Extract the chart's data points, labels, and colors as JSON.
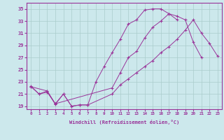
{
  "xlabel": "Windchill (Refroidissement éolien,°C)",
  "bg_color": "#cce8ec",
  "grid_color": "#aacccc",
  "line_color": "#993399",
  "xlim": [
    -0.5,
    23.5
  ],
  "ylim": [
    18.5,
    36.0
  ],
  "xticks": [
    0,
    1,
    2,
    3,
    4,
    5,
    6,
    7,
    8,
    9,
    10,
    11,
    12,
    13,
    14,
    15,
    16,
    17,
    18,
    19,
    20,
    21,
    22,
    23
  ],
  "yticks": [
    19,
    21,
    23,
    25,
    27,
    29,
    31,
    33,
    35
  ],
  "curves": [
    {
      "x": [
        0,
        1,
        2,
        3,
        4,
        5,
        6,
        7,
        8,
        9,
        10,
        11,
        12,
        13,
        14,
        15,
        16,
        17,
        18,
        19,
        20,
        21
      ],
      "y": [
        22.2,
        21.0,
        21.3,
        19.4,
        21.0,
        19.0,
        19.2,
        19.2,
        23.0,
        25.5,
        27.8,
        30.0,
        32.5,
        33.2,
        34.8,
        35.0,
        35.0,
        34.2,
        33.8,
        33.2,
        29.5,
        27.0
      ]
    },
    {
      "x": [
        0,
        2,
        3,
        10,
        11,
        12,
        13,
        14,
        15,
        16,
        17,
        18
      ],
      "y": [
        22.2,
        21.5,
        19.4,
        22.0,
        24.5,
        27.0,
        28.0,
        30.2,
        32.0,
        33.0,
        34.2,
        33.2
      ]
    },
    {
      "x": [
        0,
        1,
        2,
        3,
        4,
        5,
        6,
        7,
        10,
        11,
        12,
        13,
        14,
        15,
        16,
        17,
        18,
        19,
        20,
        21,
        22,
        23
      ],
      "y": [
        22.3,
        21.0,
        21.5,
        19.3,
        21.0,
        19.0,
        19.2,
        19.2,
        21.0,
        22.5,
        23.5,
        24.5,
        25.5,
        26.5,
        27.8,
        28.8,
        30.0,
        31.5,
        33.2,
        31.0,
        29.3,
        27.2
      ]
    }
  ]
}
